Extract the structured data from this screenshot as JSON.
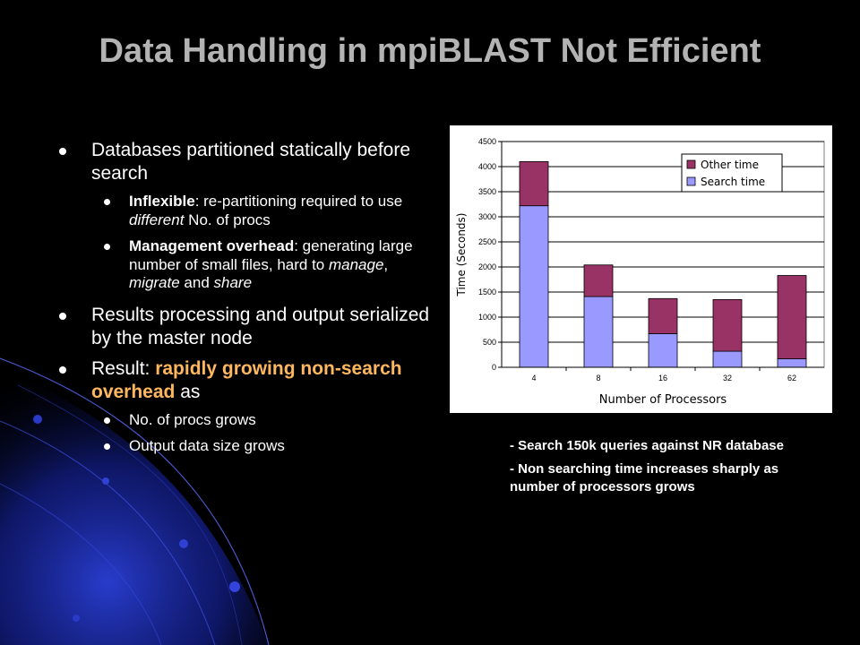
{
  "slide": {
    "title": "Data Handling in mpiBLAST Not Efficient",
    "bullets": {
      "b1": "Databases partitioned statically before search",
      "b1_sub1": {
        "term": "Inflexible",
        "a": ": re-partitioning required to use ",
        "em": "different",
        "b": " No. of procs"
      },
      "b1_sub2": {
        "term": "Management overhead",
        "a": ": generating large number of small files, hard to ",
        "em1": "manage",
        "sep1": ", ",
        "em2": "migrate",
        "sep2": " and ",
        "em3": "share"
      },
      "b2": "Results processing and output serialized by the master node",
      "b3": {
        "prefix": "Result: ",
        "highlight": "rapidly growing non-search overhead",
        "suffix": " as"
      },
      "b3_sub1": "No. of procs grows",
      "b3_sub2": "Output data size grows"
    },
    "notes": [
      "- Search 150k queries against NR database",
      "- Non searching time increases sharply as number of processors grows"
    ],
    "colors": {
      "background": "#000000",
      "title": "#b3b3b3",
      "highlight": "#ffb75e"
    }
  },
  "chart_data": {
    "type": "bar",
    "stacked": true,
    "categories": [
      "4",
      "8",
      "16",
      "32",
      "62"
    ],
    "series": [
      {
        "name": "Search time",
        "values": [
          3220,
          1410,
          670,
          320,
          170
        ],
        "color": "#9999ff"
      },
      {
        "name": "Other time",
        "values": [
          880,
          630,
          700,
          1030,
          1660
        ],
        "color": "#993366"
      }
    ],
    "legend_order": [
      "Other time",
      "Search time"
    ],
    "legend_position": "top-right",
    "xlabel": "Number of Processors",
    "ylabel": "Time (Seconds)",
    "ylim": [
      0,
      4500
    ],
    "yticks": [
      0,
      500,
      1000,
      1500,
      2000,
      2500,
      3000,
      3500,
      4000,
      4500
    ],
    "grid": true
  }
}
